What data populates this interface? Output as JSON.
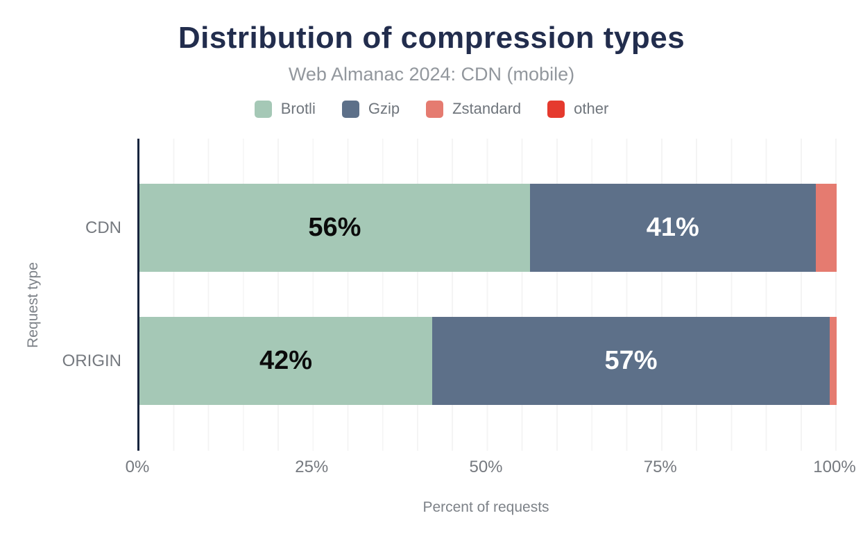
{
  "header": {
    "title": "Distribution of compression types",
    "subtitle": "Web Almanac 2024: CDN (mobile)"
  },
  "chart_data": {
    "type": "bar",
    "orientation": "horizontal",
    "stacked": true,
    "title": "Distribution of compression types",
    "subtitle": "Web Almanac 2024: CDN (mobile)",
    "categories": [
      "CDN",
      "ORIGIN"
    ],
    "series": [
      {
        "name": "Brotli",
        "color": "#a5c8b6",
        "label_color": "#0b0b0b",
        "values": [
          56,
          42
        ]
      },
      {
        "name": "Gzip",
        "color": "#5d7089",
        "label_color": "#ffffff",
        "values": [
          41,
          57
        ]
      },
      {
        "name": "Zstandard",
        "color": "#e57b70",
        "label_color": "#ffffff",
        "values": [
          3,
          1
        ]
      },
      {
        "name": "other",
        "color": "#e53a2e",
        "label_color": "#ffffff",
        "values": [
          0,
          0
        ]
      }
    ],
    "value_labels": [
      [
        "56%",
        "41%",
        "",
        ""
      ],
      [
        "42%",
        "57%",
        "",
        ""
      ]
    ],
    "xlabel": "Percent of requests",
    "ylabel": "Request type",
    "x_ticks": [
      "0%",
      "25%",
      "50%",
      "75%",
      "100%"
    ],
    "x_tick_positions": [
      0,
      25,
      50,
      75,
      100
    ],
    "xlim": [
      0,
      100
    ],
    "grid": "vertical gridlines every 5%",
    "legend_position": "top"
  },
  "colors": {
    "title": "#222d4d",
    "subtitle": "#92979d",
    "axis_text": "#75797f",
    "axis_line": "#17243d",
    "gridline": "#f4f4f4",
    "background": "#ffffff"
  }
}
